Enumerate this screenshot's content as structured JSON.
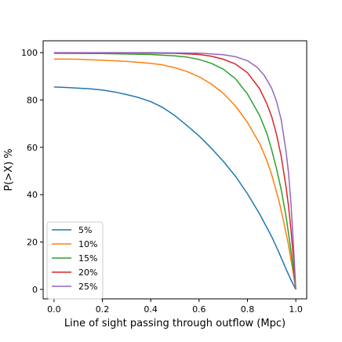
{
  "chart_data": {
    "type": "line",
    "xlabel": "Line of sight passing through outflow (Mpc)",
    "ylabel": "P(>X) %",
    "xlim": [
      -0.045,
      1.045
    ],
    "ylim": [
      -4,
      105
    ],
    "xticks": [
      "0.0",
      "0.2",
      "0.4",
      "0.6",
      "0.8",
      "1.0"
    ],
    "yticks": [
      "0",
      "20",
      "40",
      "60",
      "80",
      "100"
    ],
    "grid": false,
    "legend_position": "lower-left",
    "series": [
      {
        "name": "5%",
        "color": "#1f77b4",
        "points": [
          [
            0,
            85.5
          ],
          [
            0.05,
            85.3
          ],
          [
            0.1,
            85
          ],
          [
            0.15,
            84.7
          ],
          [
            0.2,
            84.2
          ],
          [
            0.25,
            83.4
          ],
          [
            0.3,
            82.3
          ],
          [
            0.35,
            81
          ],
          [
            0.4,
            79.3
          ],
          [
            0.45,
            76.8
          ],
          [
            0.5,
            73.4
          ],
          [
            0.55,
            69.2
          ],
          [
            0.6,
            64.8
          ],
          [
            0.65,
            59.7
          ],
          [
            0.7,
            54.1
          ],
          [
            0.75,
            47.8
          ],
          [
            0.8,
            40.4
          ],
          [
            0.85,
            31.9
          ],
          [
            0.9,
            22.3
          ],
          [
            0.93,
            15.6
          ],
          [
            0.96,
            8.5
          ],
          [
            0.98,
            4
          ],
          [
            1.0,
            0
          ]
        ]
      },
      {
        "name": "10%",
        "color": "#ff7f0e",
        "points": [
          [
            0,
            97.3
          ],
          [
            0.1,
            97.2
          ],
          [
            0.2,
            96.8
          ],
          [
            0.3,
            96.3
          ],
          [
            0.4,
            95.5
          ],
          [
            0.45,
            94.8
          ],
          [
            0.5,
            93.6
          ],
          [
            0.55,
            92
          ],
          [
            0.6,
            89.8
          ],
          [
            0.65,
            86.8
          ],
          [
            0.7,
            82.8
          ],
          [
            0.75,
            77.5
          ],
          [
            0.8,
            70.5
          ],
          [
            0.85,
            61.7
          ],
          [
            0.88,
            54.5
          ],
          [
            0.9,
            48.5
          ],
          [
            0.93,
            37.5
          ],
          [
            0.95,
            28.5
          ],
          [
            0.97,
            18.5
          ],
          [
            0.98,
            12.5
          ],
          [
            0.99,
            6.5
          ],
          [
            1.0,
            0
          ]
        ]
      },
      {
        "name": "15%",
        "color": "#2ca02c",
        "points": [
          [
            0,
            99.7
          ],
          [
            0.2,
            99.6
          ],
          [
            0.4,
            99.2
          ],
          [
            0.5,
            98.6
          ],
          [
            0.55,
            98.1
          ],
          [
            0.6,
            97.1
          ],
          [
            0.65,
            95.5
          ],
          [
            0.7,
            93
          ],
          [
            0.75,
            89
          ],
          [
            0.8,
            82.5
          ],
          [
            0.85,
            73.5
          ],
          [
            0.88,
            66
          ],
          [
            0.9,
            59
          ],
          [
            0.92,
            51
          ],
          [
            0.94,
            42
          ],
          [
            0.96,
            30.5
          ],
          [
            0.97,
            23.5
          ],
          [
            0.98,
            16
          ],
          [
            0.99,
            8.5
          ],
          [
            1.0,
            0
          ]
        ]
      },
      {
        "name": "20%",
        "color": "#d62728",
        "points": [
          [
            0,
            99.9
          ],
          [
            0.3,
            99.9
          ],
          [
            0.5,
            99.7
          ],
          [
            0.6,
            99.2
          ],
          [
            0.65,
            98.5
          ],
          [
            0.7,
            97.2
          ],
          [
            0.75,
            95.2
          ],
          [
            0.8,
            91.5
          ],
          [
            0.85,
            84.8
          ],
          [
            0.88,
            78.5
          ],
          [
            0.9,
            73
          ],
          [
            0.92,
            65.5
          ],
          [
            0.94,
            56
          ],
          [
            0.96,
            43
          ],
          [
            0.97,
            35
          ],
          [
            0.98,
            25
          ],
          [
            0.99,
            13.5
          ],
          [
            1.0,
            0
          ]
        ]
      },
      {
        "name": "25%",
        "color": "#9467bd",
        "points": [
          [
            0,
            100
          ],
          [
            0.4,
            100
          ],
          [
            0.6,
            99.8
          ],
          [
            0.7,
            99.1
          ],
          [
            0.75,
            98.3
          ],
          [
            0.8,
            96.6
          ],
          [
            0.84,
            93.8
          ],
          [
            0.87,
            90.3
          ],
          [
            0.9,
            85
          ],
          [
            0.92,
            79.5
          ],
          [
            0.94,
            71.5
          ],
          [
            0.96,
            58
          ],
          [
            0.97,
            49
          ],
          [
            0.98,
            36
          ],
          [
            0.99,
            19.5
          ],
          [
            1.0,
            0
          ]
        ]
      }
    ]
  }
}
